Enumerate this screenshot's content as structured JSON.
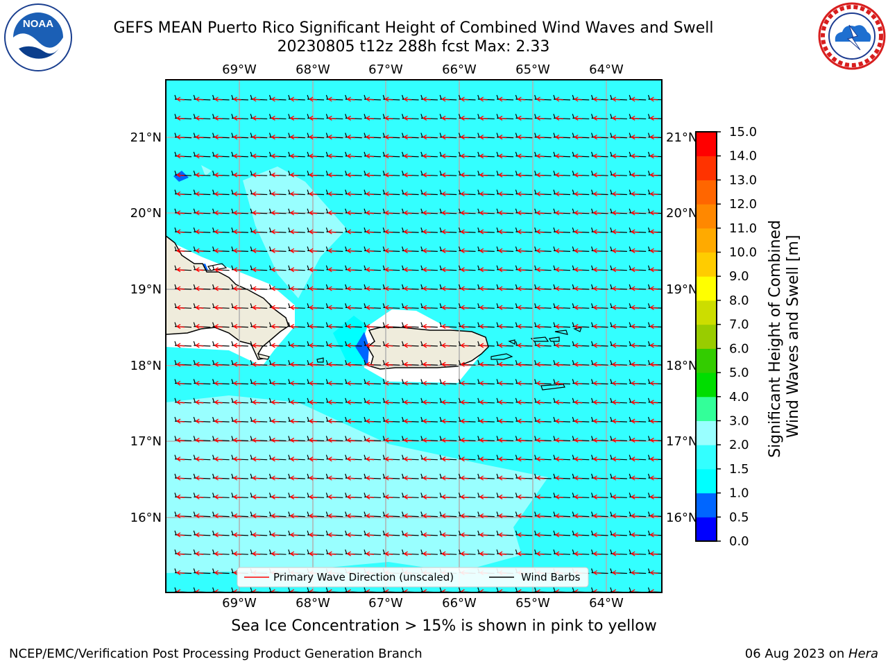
{
  "title": {
    "line1": "GEFS MEAN Puerto Rico Significant Height of Combined Wind Waves and Swell",
    "line2": "20230805 t12z 288h fcst   Max: 2.33"
  },
  "logos": {
    "left": {
      "icon": "noaa-logo",
      "text": "NOAA"
    },
    "right": {
      "icon": "national-weather-service-logo"
    }
  },
  "map": {
    "lon_labels": [
      "69°W",
      "68°W",
      "67°W",
      "66°W",
      "65°W",
      "64°W"
    ],
    "lat_labels": [
      "21°N",
      "20°N",
      "19°N",
      "18°N",
      "17°N",
      "16°N"
    ],
    "legend": {
      "wave_direction": "Primary Wave Direction (unscaled)",
      "wind_barbs": "Wind Barbs"
    },
    "colors": {
      "ocean_base": "#33ffff",
      "ocean_light": "#99ffff",
      "land": "#efecdc",
      "wave_arrows": "#ff0000",
      "wind_barbs": "#000000"
    }
  },
  "colorbar": {
    "label_line1": "Significant Height of Combined",
    "label_line2": "Wind Waves and Swell [m]",
    "ticks": [
      "0.0",
      "0.5",
      "1.0",
      "1.5",
      "2.0",
      "3.0",
      "4.0",
      "5.0",
      "6.0",
      "7.0",
      "8.0",
      "9.0",
      "10.0",
      "11.0",
      "12.0",
      "13.0",
      "14.0",
      "15.0"
    ],
    "colors": [
      "#0000ff",
      "#0066ff",
      "#00ffff",
      "#33ffff",
      "#99ffff",
      "#33ff99",
      "#00dd00",
      "#33cc00",
      "#99cc00",
      "#ccdd00",
      "#ffff00",
      "#ffcc00",
      "#ffaa00",
      "#ff8800",
      "#ff6600",
      "#ff3300",
      "#ff0000"
    ]
  },
  "caption": "Sea Ice Concentration > 15% is shown in pink to yellow",
  "footer": {
    "left": "NCEP/EMC/Verification Post Processing Product Generation Branch",
    "date": "06 Aug 2023 on ",
    "host": "Hera"
  }
}
